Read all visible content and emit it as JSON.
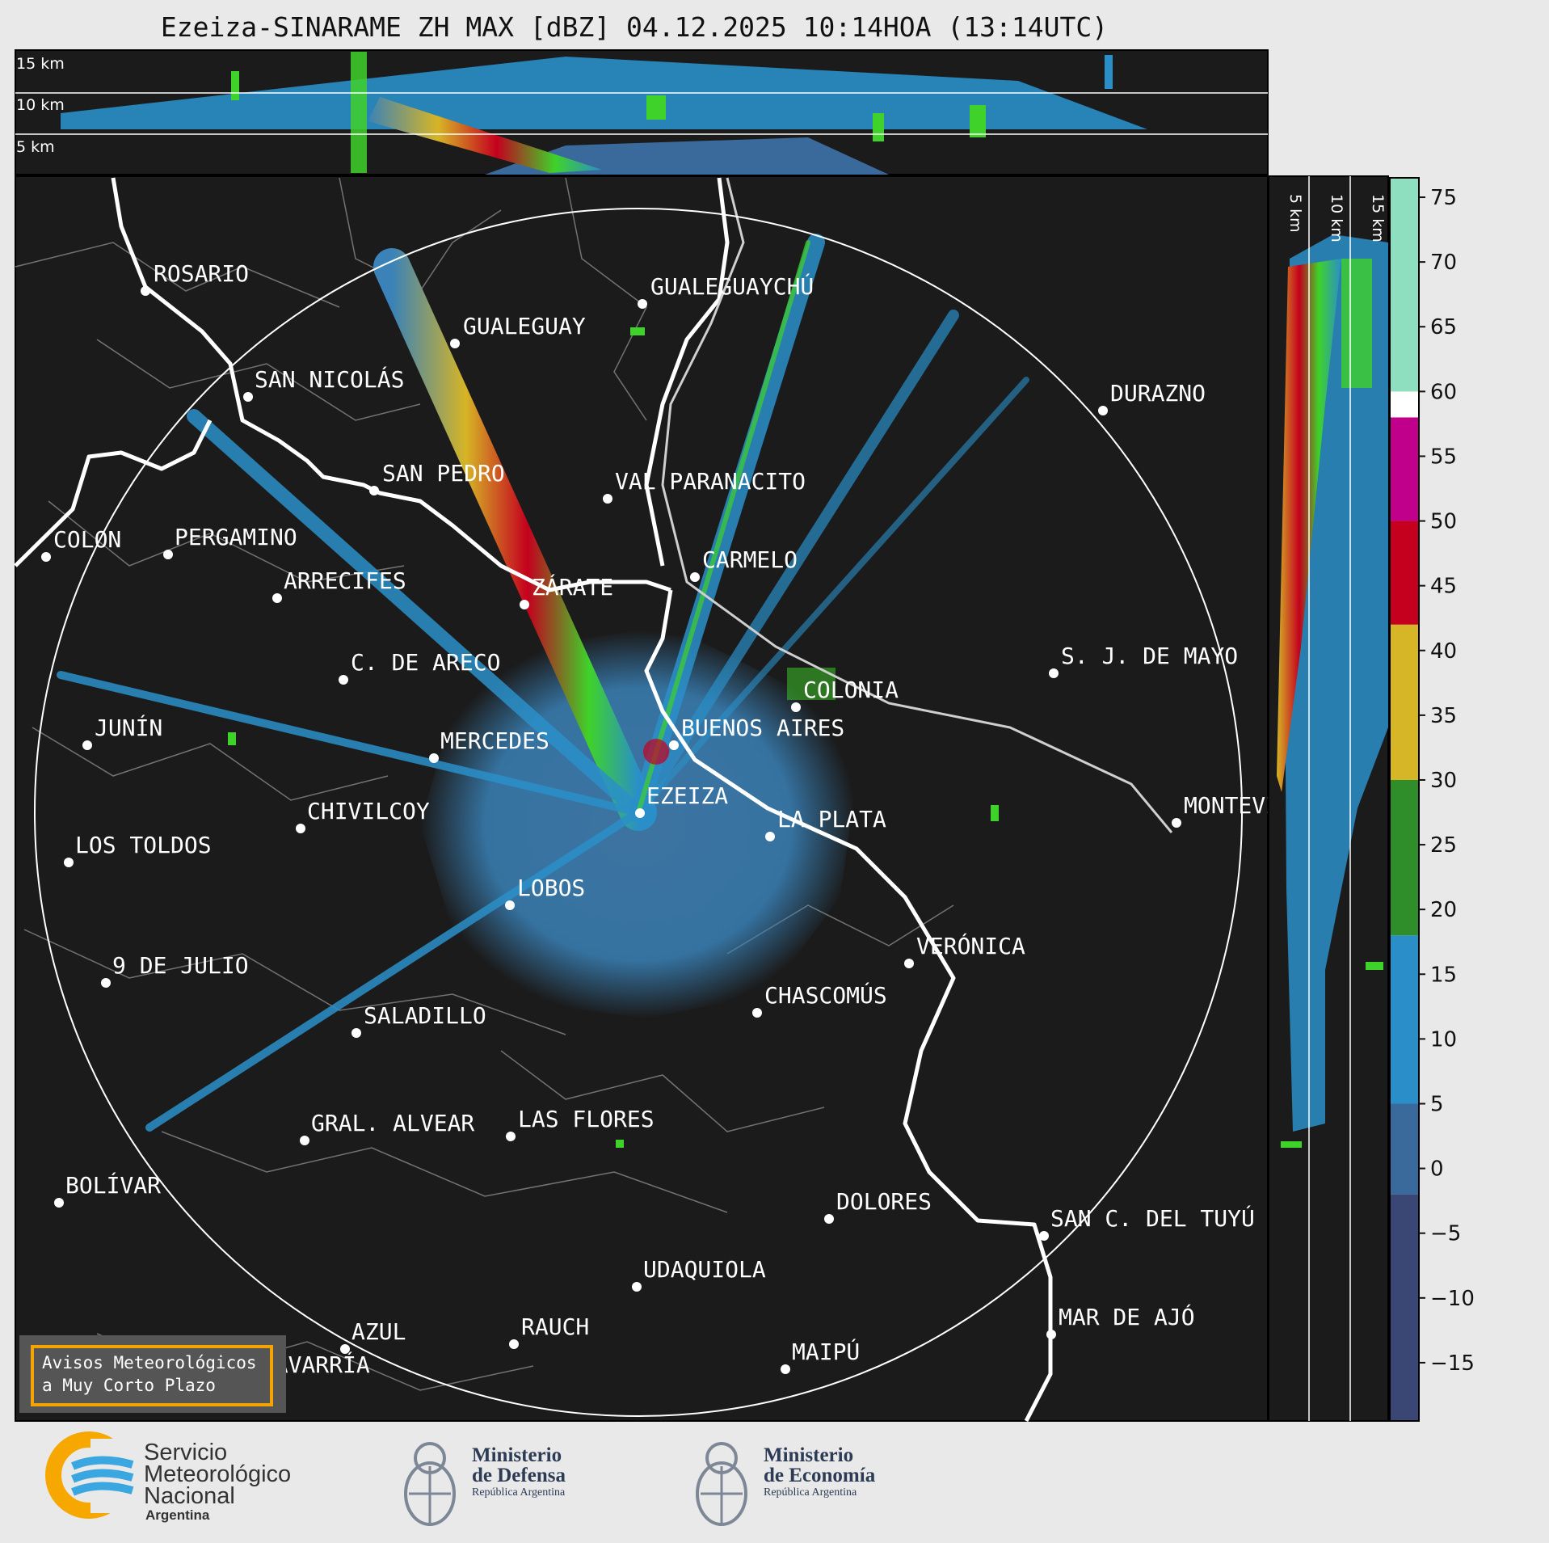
{
  "title": "Ezeiza-SINARAME ZH MAX [dBZ] 04.12.2025 10:14HOA (13:14UTC)",
  "top_panel": {
    "altitude_labels": [
      "15 km",
      "10 km",
      "5 km"
    ]
  },
  "side_panel": {
    "altitude_labels": [
      "5 km",
      "10 km",
      "15 km"
    ]
  },
  "radar_site": "EZEIZA",
  "cities": [
    {
      "name": "ROSARIO"
    },
    {
      "name": "GUALEGUAYCHÚ"
    },
    {
      "name": "GUALEGUAY"
    },
    {
      "name": "SAN NICOLÁS"
    },
    {
      "name": "DURAZNO"
    },
    {
      "name": "SAN PEDRO"
    },
    {
      "name": "VAL PARANACITO"
    },
    {
      "name": "COLON"
    },
    {
      "name": "PERGAMINO"
    },
    {
      "name": "CARMELO"
    },
    {
      "name": "ARRECIFES"
    },
    {
      "name": "ZÁRATE"
    },
    {
      "name": "S. J. DE MAYO"
    },
    {
      "name": "C. DE ARECO"
    },
    {
      "name": "COLONIA"
    },
    {
      "name": "JUNÍN"
    },
    {
      "name": "BUENOS AIRES"
    },
    {
      "name": "MERCEDES"
    },
    {
      "name": "EZEIZA"
    },
    {
      "name": "MONTEVIDEO"
    },
    {
      "name": "CHIVILCOY"
    },
    {
      "name": "LA PLATA"
    },
    {
      "name": "LOS TOLDOS"
    },
    {
      "name": "LOBOS"
    },
    {
      "name": "VERÓNICA"
    },
    {
      "name": "9 DE JULIO"
    },
    {
      "name": "CHASCOMÚS"
    },
    {
      "name": "SALADILLO"
    },
    {
      "name": "GRAL. ALVEAR"
    },
    {
      "name": "LAS FLORES"
    },
    {
      "name": "BOLÍVAR"
    },
    {
      "name": "DOLORES"
    },
    {
      "name": "SAN C. DEL TUYÚ"
    },
    {
      "name": "UDAQUIOLA"
    },
    {
      "name": "MAR DE AJÓ"
    },
    {
      "name": "AZUL"
    },
    {
      "name": "RAUCH"
    },
    {
      "name": "OLAVARRÍA"
    },
    {
      "name": "MAIPÚ"
    }
  ],
  "colorbar": {
    "unit": "dBZ",
    "ticks": [
      "75",
      "70",
      "65",
      "60",
      "55",
      "50",
      "45",
      "40",
      "35",
      "30",
      "25",
      "20",
      "15",
      "10",
      "5",
      "0",
      "−5",
      "−10",
      "−15"
    ],
    "tick_values": [
      75,
      70,
      65,
      60,
      55,
      50,
      45,
      40,
      35,
      30,
      25,
      20,
      15,
      10,
      5,
      0,
      -5,
      -10,
      -15
    ],
    "range": [
      -19.5,
      76.5
    ],
    "stops": [
      {
        "from": -19.5,
        "to": -2,
        "color": "#3a4674"
      },
      {
        "from": -2,
        "to": 5,
        "color": "#3a6a9c"
      },
      {
        "from": 5,
        "to": 18,
        "color": "#2a8fc8"
      },
      {
        "from": 18,
        "to": 30,
        "color": "#2f8e2a"
      },
      {
        "from": 30,
        "to": 42,
        "color": "#d6b526"
      },
      {
        "from": 42,
        "to": 50,
        "color": "#c4001e"
      },
      {
        "from": 50,
        "to": 58,
        "color": "#c0008a"
      },
      {
        "from": 58,
        "to": 60,
        "color": "#ffffff"
      },
      {
        "from": 60,
        "to": 76.5,
        "color": "#8edfc0"
      }
    ]
  },
  "warning_box": {
    "line1": "Avisos Meteorológicos",
    "line2": "a Muy Corto Plazo"
  },
  "footer": {
    "smn": {
      "line1": "Servicio",
      "line2": "Meteorológico",
      "line3": "Nacional",
      "country": "Argentina"
    },
    "defensa": {
      "line1": "Ministerio",
      "line2": "de Defensa",
      "sub": "República Argentina"
    },
    "economia": {
      "line1": "Ministerio",
      "line2": "de Economía",
      "sub": "República Argentina"
    }
  },
  "colors": {
    "map_bg": "#1b1b1b",
    "range_ring": "#ffffff",
    "echo_weak": "#3a82b8",
    "echo_strong": "#c4001e"
  }
}
